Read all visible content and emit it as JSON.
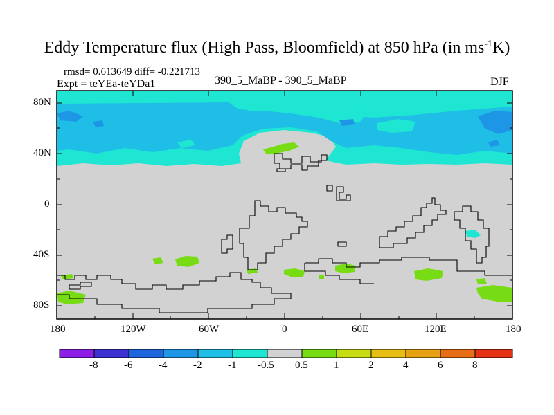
{
  "title": {
    "main": "Eddy Temperature flux (High Pass, Bloomfield) at 850 hPa (in ms",
    "sup": "-1",
    "tail": "K)"
  },
  "stats": "rmsd= 0.613649 diff= -0.221713",
  "expt": "Expt = teYEa-teYDa1",
  "comparison": "390_5_MaBP - 390_5_MaBP",
  "season": "DJF",
  "map": {
    "y_ticks": [
      {
        "label": "80N",
        "lat": 80
      },
      {
        "label": "40N",
        "lat": 40
      },
      {
        "label": "0",
        "lat": 0
      },
      {
        "label": "40S",
        "lat": -40
      },
      {
        "label": "80S",
        "lat": -80
      }
    ],
    "x_ticks": [
      {
        "label": "180",
        "lon": -180
      },
      {
        "label": "120W",
        "lon": -120
      },
      {
        "label": "60W",
        "lon": -60
      },
      {
        "label": "0",
        "lon": 0
      },
      {
        "label": "60E",
        "lon": 60
      },
      {
        "label": "120E",
        "lon": 120
      },
      {
        "label": "180",
        "lon": 180
      }
    ],
    "lon_range": [
      -180,
      180
    ],
    "lat_range": [
      -90,
      90
    ]
  },
  "colorbar": {
    "labels": [
      "-8",
      "-6",
      "-4",
      "-2",
      "-1",
      "-0.5",
      "0.5",
      "1",
      "2",
      "4",
      "6",
      "8"
    ],
    "colors": [
      "#8c1ee6",
      "#3c32d2",
      "#1e64dc",
      "#1e96e6",
      "#1ebee6",
      "#1ee6d2",
      "#d2d2d2",
      "#78dc14",
      "#c8dc14",
      "#e6be14",
      "#e6a014",
      "#e66e14",
      "#e63214"
    ]
  },
  "colors": {
    "land_ocean_neutral": "#d2d2d2",
    "band_light": "#1ee6d2",
    "band_mid": "#1ebee6",
    "band_dark": "#1e96e6",
    "positive": "#78dc14"
  }
}
